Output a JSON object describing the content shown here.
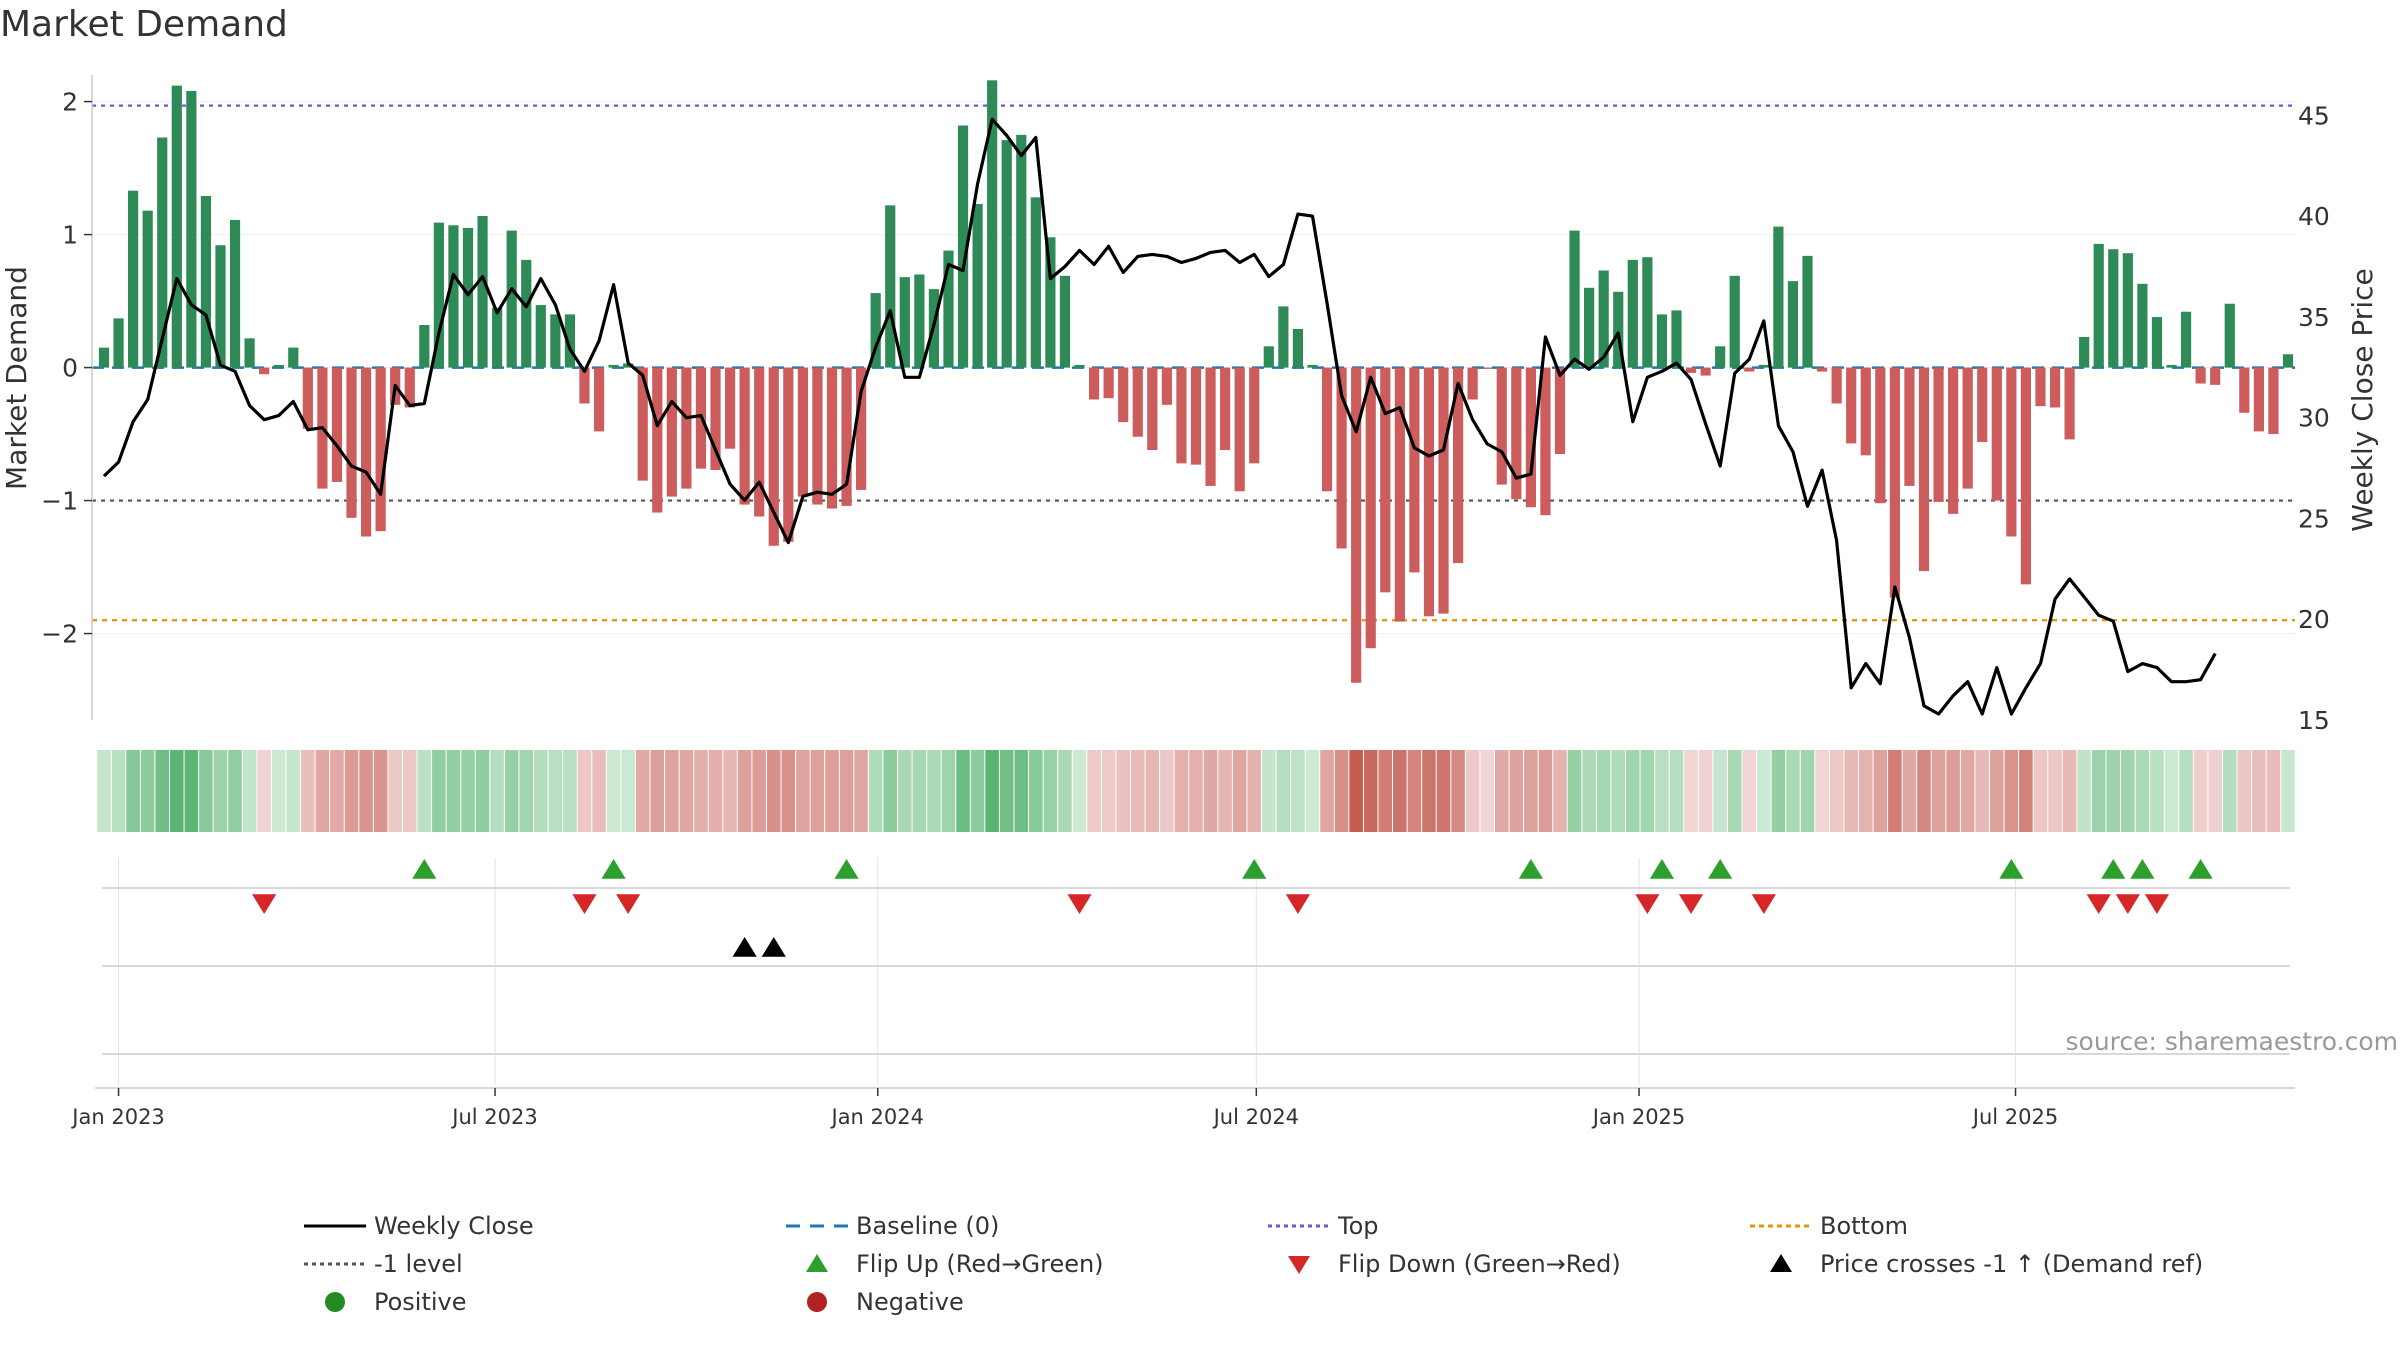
{
  "title": "Market Demand",
  "source": "source: sharemaestro.com",
  "colors": {
    "pos_bar": "#2e8b57",
    "neg_bar": "#cd5c5c",
    "price_line": "#000000",
    "baseline": "#1f77b4",
    "top": "#6a5acd",
    "bottom": "#e69500",
    "minus1": "#555555",
    "flip_up": "#2ca02c",
    "flip_down": "#d62728",
    "cross": "#000000",
    "positive": "#228b22",
    "negative": "#b22222"
  },
  "chart_data": {
    "type": "bar",
    "title": "Market Demand",
    "ylabel": "Market Demand",
    "y2label": "Weekly Close Price",
    "ylim": [
      -2.65,
      2.2
    ],
    "y_ticks": [
      2,
      1,
      0,
      -1,
      -2
    ],
    "y2lim": [
      15,
      47
    ],
    "y2_ticks": [
      45,
      40,
      35,
      30,
      25,
      20,
      15
    ],
    "start_date": "2022-12-25",
    "x_tick_labels": [
      "Jan 2023",
      "Jul 2023",
      "Jan 2024",
      "Jul 2024",
      "Jan 2025",
      "Jul 2025"
    ],
    "x_ticks": [
      "2023-01-01",
      "2023-07-01",
      "2024-01-01",
      "2024-07-01",
      "2025-01-01",
      "2025-07-01"
    ],
    "reference_lines": {
      "top": 1.97,
      "bottom": -1.9,
      "minus_one": -1.0,
      "baseline": 0
    },
    "series": [
      {
        "name": "Market Demand",
        "values": [
          0.15,
          0.37,
          1.33,
          1.18,
          1.73,
          2.12,
          2.08,
          1.29,
          0.92,
          1.11,
          0.22,
          -0.05,
          0.02,
          0.15,
          -0.46,
          -0.91,
          -0.86,
          -1.13,
          -1.27,
          -1.23,
          -0.28,
          -0.3,
          0.32,
          1.09,
          1.07,
          1.05,
          1.14,
          0.45,
          1.03,
          0.81,
          0.47,
          0.4,
          0.4,
          -0.27,
          -0.48,
          0.02,
          0.03,
          -0.85,
          -1.09,
          -0.97,
          -0.91,
          -0.76,
          -0.77,
          -0.61,
          -1.03,
          -1.12,
          -1.34,
          -1.31,
          -0.97,
          -1.03,
          -1.06,
          -1.04,
          -0.92,
          0.56,
          1.22,
          0.68,
          0.7,
          0.59,
          0.88,
          1.82,
          1.23,
          2.16,
          1.71,
          1.75,
          1.28,
          0.98,
          0.69,
          0.02,
          -0.24,
          -0.23,
          -0.41,
          -0.52,
          -0.62,
          -0.28,
          -0.72,
          -0.73,
          -0.89,
          -0.62,
          -0.93,
          -0.72,
          0.16,
          0.46,
          0.29,
          0.02,
          -0.93,
          -1.36,
          -2.37,
          -2.11,
          -1.69,
          -1.91,
          -1.54,
          -1.87,
          -1.85,
          -1.47,
          -0.24,
          -0.01,
          -0.88,
          -0.99,
          -1.05,
          -1.11,
          -0.65,
          1.03,
          0.6,
          0.73,
          0.57,
          0.81,
          0.83,
          0.4,
          0.43,
          -0.04,
          -0.06,
          0.16,
          0.69,
          -0.03,
          0.02,
          1.06,
          0.65,
          0.84,
          -0.03,
          -0.27,
          -0.57,
          -0.66,
          -1.02,
          -1.73,
          -0.89,
          -1.53,
          -1.01,
          -1.1,
          -0.91,
          -0.56,
          -1.0,
          -1.27,
          -1.63,
          -0.29,
          -0.3,
          -0.54,
          0.23,
          0.93,
          0.89,
          0.86,
          0.63,
          0.38,
          0.02,
          0.42,
          -0.12,
          -0.13,
          0.48,
          -0.34,
          -0.48,
          -0.5,
          0.1
        ]
      },
      {
        "name": "Weekly Close",
        "values": [
          27.1,
          27.8,
          29.8,
          30.9,
          33.9,
          36.9,
          35.6,
          35.1,
          32.6,
          32.3,
          30.6,
          29.9,
          30.1,
          30.8,
          29.4,
          29.5,
          28.6,
          27.6,
          27.3,
          26.2,
          31.6,
          30.6,
          30.7,
          34.2,
          37.1,
          36.1,
          37.0,
          35.2,
          36.4,
          35.5,
          36.9,
          35.6,
          33.4,
          32.3,
          33.8,
          36.6,
          32.7,
          32.1,
          29.6,
          30.8,
          30.0,
          30.1,
          28.4,
          26.7,
          25.9,
          26.8,
          25.3,
          23.8,
          26.1,
          26.3,
          26.2,
          26.7,
          31.3,
          33.5,
          35.3,
          32.0,
          32.0,
          34.6,
          37.6,
          37.3,
          41.6,
          44.8,
          44.0,
          43.0,
          43.9,
          36.9,
          37.5,
          38.3,
          37.6,
          38.5,
          37.2,
          38.0,
          38.1,
          38.0,
          37.7,
          37.9,
          38.2,
          38.3,
          37.7,
          38.1,
          37.0,
          37.6,
          40.1,
          40.0,
          35.7,
          31.1,
          29.3,
          32.0,
          30.2,
          30.5,
          28.5,
          28.1,
          28.4,
          31.7,
          29.9,
          28.7,
          28.3,
          27.0,
          27.2,
          34.0,
          32.1,
          32.9,
          32.4,
          33.0,
          34.2,
          29.8,
          32.0,
          32.3,
          32.7,
          31.9,
          29.7,
          27.6,
          32.2,
          32.9,
          34.8,
          29.6,
          28.3,
          25.6,
          27.4,
          23.9,
          16.6,
          17.8,
          16.8,
          21.6,
          19.1,
          15.7,
          15.3,
          16.2,
          16.9,
          15.3,
          17.6,
          15.3,
          16.6,
          17.8,
          21.0,
          22.0,
          21.1,
          20.2,
          19.9,
          17.4,
          17.8,
          17.6,
          16.9,
          16.9,
          17.0,
          18.3
        ],
        "axis": "right"
      }
    ],
    "flip_up_weeks": [
      22,
      35,
      51,
      79,
      98,
      107,
      111,
      131,
      138,
      140,
      144
    ],
    "flip_down_weeks": [
      11,
      33,
      36,
      67,
      82,
      106,
      109,
      114,
      137,
      139,
      141
    ],
    "price_cross_weeks": [
      44,
      46
    ]
  },
  "legend": [
    {
      "label": "Weekly Close",
      "icon": "solid-line-swatch"
    },
    {
      "label": "Baseline (0)",
      "icon": "dashed-line-swatch"
    },
    {
      "label": "Top",
      "icon": "dotted-line-swatch"
    },
    {
      "label": "Bottom",
      "icon": "dotted-line-swatch"
    },
    {
      "label": "-1 level",
      "icon": "dotted-line-swatch"
    },
    {
      "label": "Flip Up (Red→Green)",
      "icon": "triangle-up-icon"
    },
    {
      "label": "Flip Down (Green→Red)",
      "icon": "triangle-down-icon"
    },
    {
      "label": "Price crosses -1 ↑ (Demand ref)",
      "icon": "triangle-up-icon"
    },
    {
      "label": "Positive",
      "icon": "circle-icon"
    },
    {
      "label": "Negative",
      "icon": "circle-icon"
    }
  ]
}
